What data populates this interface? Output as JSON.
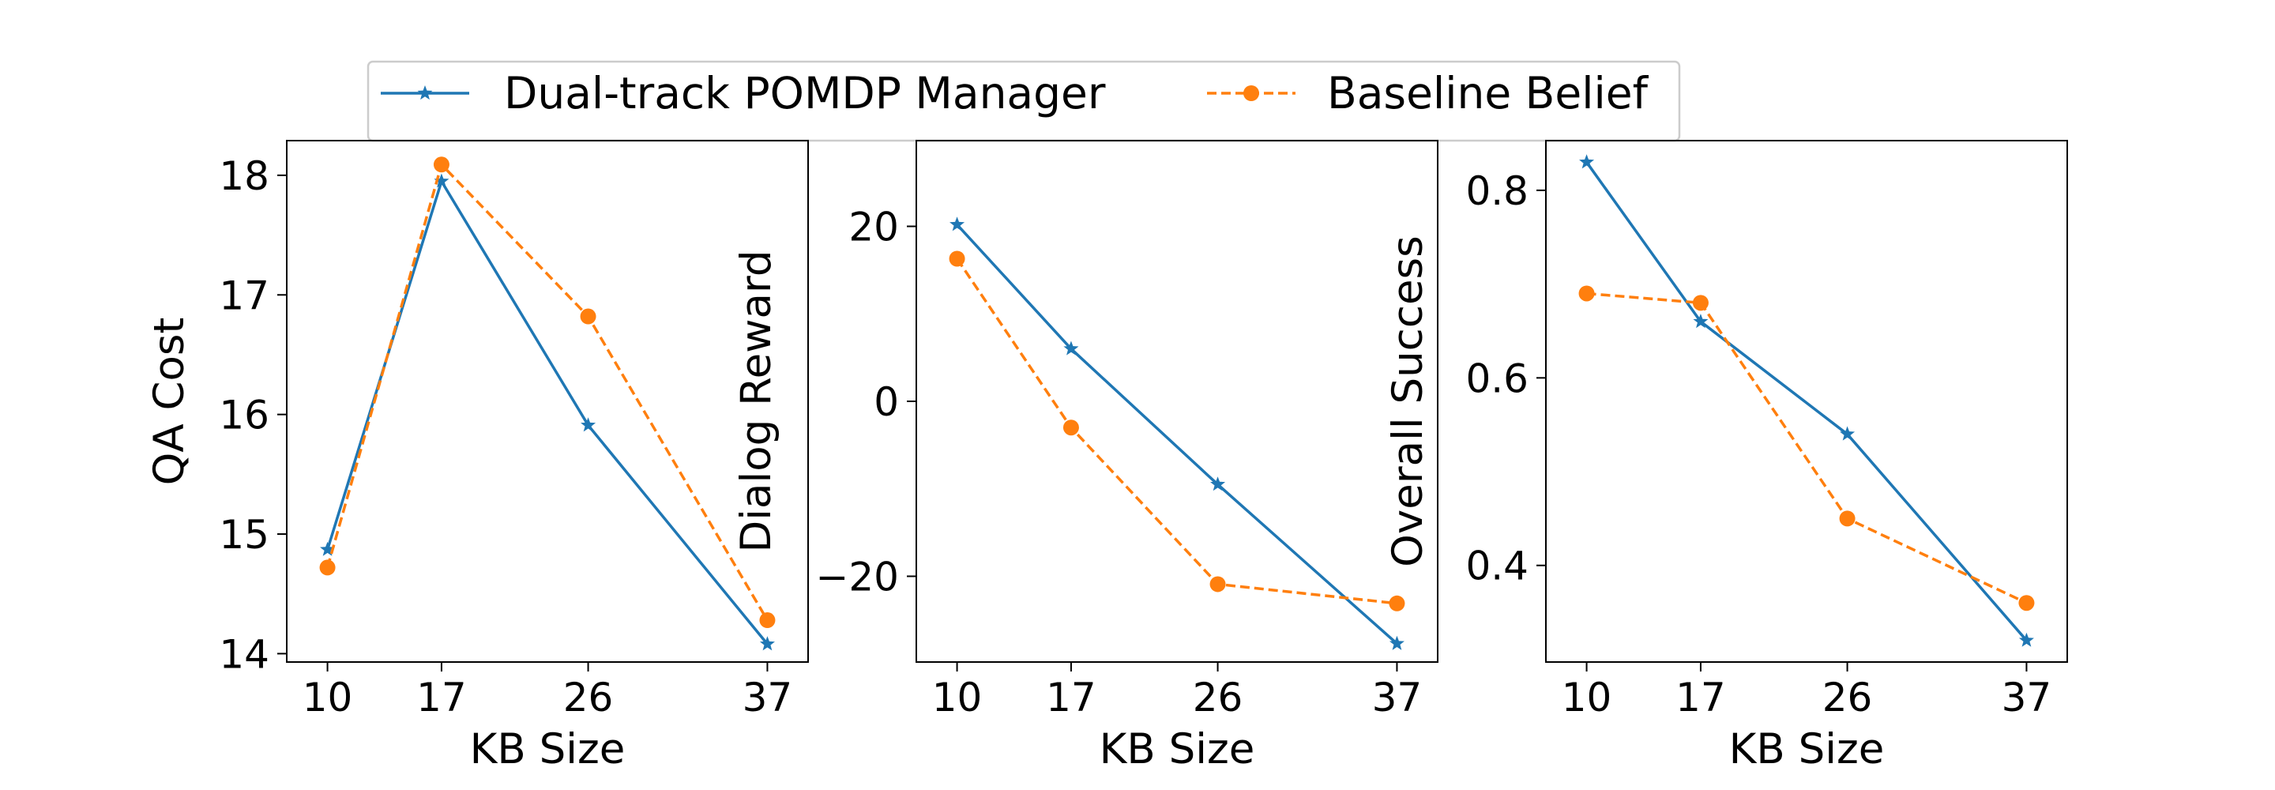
{
  "legend": {
    "placement": "top-center",
    "items": [
      {
        "label": "Dual-track POMDP Manager",
        "color": "#1f77b4",
        "line": "solid",
        "marker": "star"
      },
      {
        "label": "Baseline Belief",
        "color": "#ff7f0e",
        "line": "dashed",
        "marker": "circle"
      }
    ]
  },
  "chart_data": [
    {
      "type": "line",
      "xlabel": "KB Size",
      "ylabel": "QA Cost",
      "x": [
        10,
        17,
        26,
        37
      ],
      "xticks": [
        "10",
        "17",
        "26",
        "37"
      ],
      "yticks": [
        14,
        15,
        16,
        17,
        18
      ],
      "ytick_labels": [
        "14",
        "15",
        "16",
        "17",
        "18"
      ],
      "xlim": [
        7.5,
        39.5
      ],
      "ylim": [
        13.93,
        18.29
      ],
      "grid": false,
      "series": [
        {
          "name": "Dual-track POMDP Manager",
          "values": [
            14.87,
            17.95,
            15.91,
            14.08
          ]
        },
        {
          "name": "Baseline Belief",
          "values": [
            14.72,
            18.09,
            16.82,
            14.28
          ]
        }
      ]
    },
    {
      "type": "line",
      "xlabel": "KB Size",
      "ylabel": "Dialog Reward",
      "x": [
        10,
        17,
        26,
        37
      ],
      "xticks": [
        "10",
        "17",
        "26",
        "37"
      ],
      "yticks": [
        -20,
        0,
        20
      ],
      "ytick_labels": [
        "−20",
        "0",
        "20"
      ],
      "xlim": [
        7.5,
        39.5
      ],
      "ylim": [
        -29.8,
        29.8
      ],
      "grid": false,
      "series": [
        {
          "name": "Dual-track POMDP Manager",
          "values": [
            20.2,
            6.0,
            -9.5,
            -27.7
          ]
        },
        {
          "name": "Baseline Belief",
          "values": [
            16.3,
            -3.0,
            -20.9,
            -23.1
          ]
        }
      ]
    },
    {
      "type": "line",
      "xlabel": "KB Size",
      "ylabel": "Overall Success",
      "x": [
        10,
        17,
        26,
        37
      ],
      "xticks": [
        "10",
        "17",
        "26",
        "37"
      ],
      "yticks": [
        0.4,
        0.6,
        0.8
      ],
      "ytick_labels": [
        "0.4",
        "0.6",
        "0.8"
      ],
      "xlim": [
        7.5,
        39.5
      ],
      "ylim": [
        0.297,
        0.853
      ],
      "grid": false,
      "series": [
        {
          "name": "Dual-track POMDP Manager",
          "values": [
            0.83,
            0.66,
            0.54,
            0.32
          ]
        },
        {
          "name": "Baseline Belief",
          "values": [
            0.69,
            0.68,
            0.45,
            0.36
          ]
        }
      ]
    }
  ]
}
